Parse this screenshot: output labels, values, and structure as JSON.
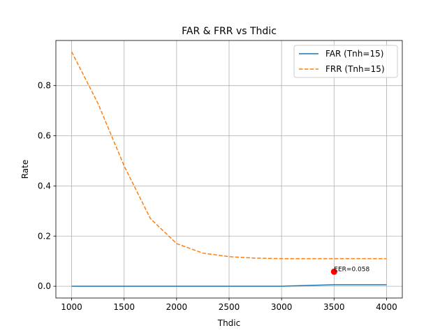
{
  "chart_data": {
    "type": "line",
    "title": "FAR & FRR vs Thdic",
    "xlabel": "Thdic",
    "ylabel": "Rate",
    "xlim": [
      850,
      4150
    ],
    "ylim": [
      -0.047,
      0.98
    ],
    "xticks": [
      1000,
      1500,
      2000,
      2500,
      3000,
      3500,
      4000
    ],
    "yticks": [
      0.0,
      0.2,
      0.4,
      0.6,
      0.8
    ],
    "ytick_labels": [
      "0.0",
      "0.2",
      "0.4",
      "0.6",
      "0.8"
    ],
    "grid": true,
    "legend_position": "top-right",
    "series": [
      {
        "name": "FAR (Tnh=15)",
        "color": "#1f77b4",
        "style": "solid",
        "x": [
          1000,
          1250,
          1500,
          1750,
          2000,
          2250,
          2500,
          2750,
          3000,
          3250,
          3500,
          3750,
          4000
        ],
        "y": [
          0.0,
          0.0,
          0.0,
          0.0,
          0.0,
          0.0,
          0.0,
          0.0,
          0.0,
          0.003,
          0.006,
          0.006,
          0.006
        ]
      },
      {
        "name": "FRR (Tnh=15)",
        "color": "#ff7f0e",
        "style": "dashed",
        "x": [
          1000,
          1250,
          1500,
          1750,
          2000,
          2250,
          2500,
          2750,
          3000,
          3250,
          3500,
          3750,
          4000
        ],
        "y": [
          0.935,
          0.73,
          0.48,
          0.27,
          0.17,
          0.132,
          0.118,
          0.112,
          0.11,
          0.11,
          0.11,
          0.11,
          0.11
        ]
      }
    ],
    "eer_point": {
      "x": 3500,
      "y": 0.058,
      "color": "#ff0000"
    },
    "annotations": [
      {
        "text": "EER=0.058",
        "x": 3500,
        "y": 0.058
      }
    ]
  }
}
